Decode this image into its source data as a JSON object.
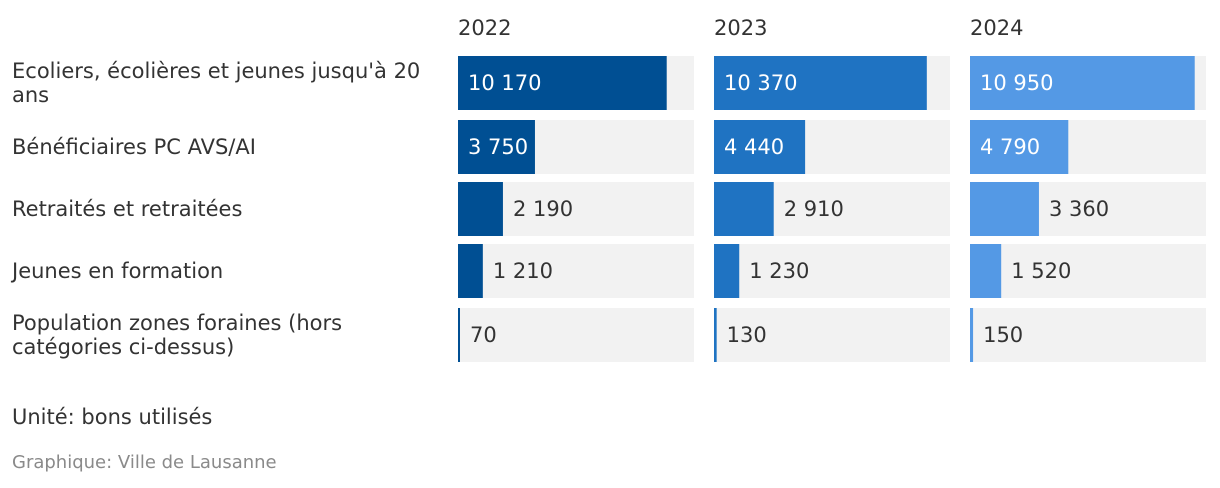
{
  "chart_data": {
    "type": "bar",
    "orientation": "horizontal",
    "layout": "small-multiples",
    "categories": [
      "Ecoliers, écolières et jeunes jusqu'à 20 ans",
      "Bénéficiaires PC AVS/AI",
      "Retraités et retraitées",
      "Jeunes en formation",
      "Population zones foraines (hors catégories ci-dessus)"
    ],
    "series": [
      {
        "name": "2022",
        "color": "#004f93",
        "values": [
          10170,
          3750,
          2190,
          1210,
          70
        ],
        "value_labels": [
          "10 170",
          "3 750",
          "2 190",
          "1 210",
          "70"
        ]
      },
      {
        "name": "2023",
        "color": "#1f73c2",
        "values": [
          10370,
          4440,
          2910,
          1230,
          130
        ],
        "value_labels": [
          "10 370",
          "4 440",
          "2 910",
          "1 230",
          "130"
        ]
      },
      {
        "name": "2024",
        "color": "#5499e5",
        "values": [
          10950,
          4790,
          3360,
          1520,
          150
        ],
        "value_labels": [
          "10 950",
          "4 790",
          "3 360",
          "1 520",
          "150"
        ]
      }
    ],
    "xlim": [
      0,
      11500
    ],
    "grid": false,
    "track_color": "#f2f2f2"
  },
  "notes": {
    "unit": "Unité: bons utilisés",
    "source": "Graphique: Ville de Lausanne"
  }
}
